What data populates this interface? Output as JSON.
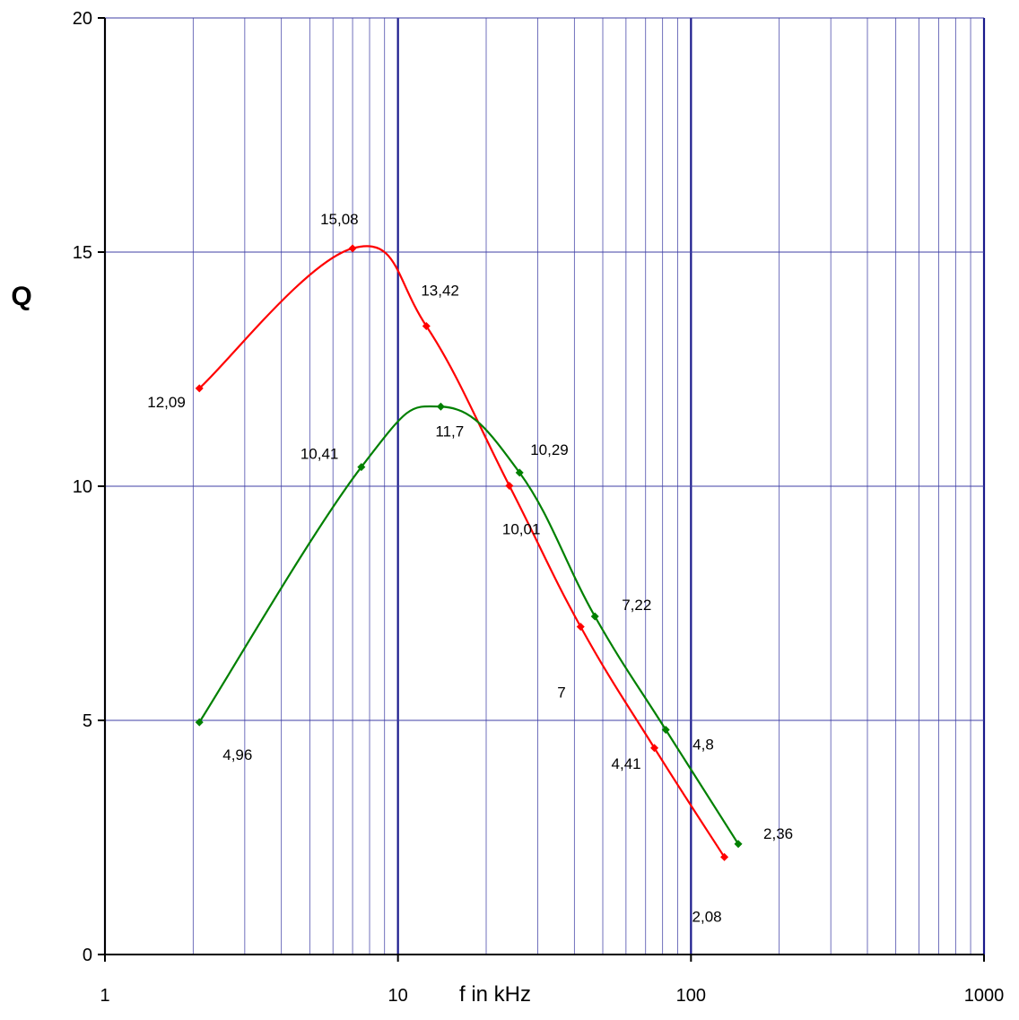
{
  "chart_data": {
    "type": "line",
    "xscale": "log",
    "xlim": [
      1,
      1000
    ],
    "ylim": [
      0,
      20
    ],
    "xticks": [
      "1",
      "10",
      "100",
      "1000"
    ],
    "yticks": [
      "0",
      "5",
      "10",
      "15",
      "20"
    ],
    "xlabel": "f in kHz",
    "ylabel": "Q",
    "grid": true,
    "legend": "none",
    "series": [
      {
        "color": "#ff0000",
        "x": [
          2.1,
          7.0,
          12.5,
          24,
          42,
          75,
          130
        ],
        "y": [
          12.09,
          15.08,
          13.42,
          10.01,
          7,
          4.41,
          2.08
        ],
        "labels": [
          "12,09",
          "15,08",
          "13,42",
          "10,01",
          "7",
          "4,41",
          "2,08"
        ]
      },
      {
        "color": "#008000",
        "x": [
          2.1,
          7.5,
          14,
          26,
          47,
          82,
          145
        ],
        "y": [
          4.96,
          10.41,
          11.7,
          10.29,
          7.22,
          4.8,
          2.36
        ],
        "labels": [
          "4,96",
          "10,41",
          "11,7",
          "10,29",
          "7,22",
          "4,8",
          "2,36"
        ]
      }
    ]
  }
}
